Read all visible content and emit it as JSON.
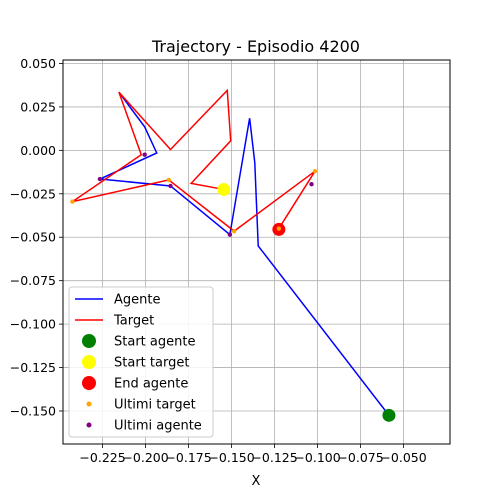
{
  "chart_data": {
    "type": "line",
    "title": "Trajectory - Episodio 4200",
    "xlabel": "X",
    "ylabel": "",
    "xlim": [
      -0.248,
      -0.023
    ],
    "ylim": [
      -0.169,
      0.052
    ],
    "xticks": [
      -0.225,
      -0.2,
      -0.175,
      -0.15,
      -0.125,
      -0.1,
      -0.075,
      -0.05
    ],
    "xtick_labels": [
      "−0.225",
      "−0.200",
      "−0.175",
      "−0.150",
      "−0.125",
      "−0.100",
      "−0.075",
      "−0.050"
    ],
    "yticks": [
      0.05,
      0.025,
      0.0,
      -0.025,
      -0.05,
      -0.075,
      -0.1,
      -0.125,
      -0.15
    ],
    "ytick_labels": [
      "0.050",
      "0.025",
      "0.000",
      "−0.025",
      "−0.050",
      "−0.075",
      "−0.100",
      "−0.125",
      "−0.150"
    ],
    "grid": true,
    "legend_position": "lower-left",
    "series": [
      {
        "name": "Agente",
        "kind": "line",
        "color": "#0000ff",
        "x": [
          -0.0585,
          -0.1345,
          -0.1365,
          -0.1395,
          -0.151,
          -0.1855,
          -0.2265,
          -0.1935,
          -0.2005,
          -0.2155
        ],
        "y": [
          -0.1525,
          -0.055,
          -0.007,
          0.0185,
          -0.0485,
          -0.0205,
          -0.0165,
          -0.0015,
          0.0135,
          0.0335
        ]
      },
      {
        "name": "Target",
        "kind": "line",
        "color": "#ff0000",
        "x": [
          -0.1545,
          -0.1735,
          -0.1505,
          -0.1525,
          -0.1855,
          -0.2155,
          -0.2025,
          -0.2425,
          -0.1865,
          -0.1485,
          -0.1015,
          -0.1225
        ],
        "y": [
          -0.0225,
          -0.019,
          0.0055,
          0.0345,
          0.0005,
          0.0335,
          -0.0025,
          -0.0295,
          -0.017,
          -0.0465,
          -0.012,
          -0.045
        ]
      },
      {
        "name": "Start agente",
        "kind": "marker",
        "color": "#008000",
        "x": [
          -0.0585
        ],
        "y": [
          -0.1525
        ]
      },
      {
        "name": "Start target",
        "kind": "marker",
        "color": "#ffff00",
        "x": [
          -0.1545
        ],
        "y": [
          -0.0225
        ]
      },
      {
        "name": "End agente",
        "kind": "marker",
        "color": "#ff0000",
        "x": [
          -0.1225
        ],
        "y": [
          -0.0455
        ]
      },
      {
        "name": "Ultimi target",
        "kind": "small-marker",
        "color": "#ffa500",
        "x": [
          -0.1015,
          -0.1225,
          -0.2425,
          -0.1865,
          -0.1485
        ],
        "y": [
          -0.012,
          -0.045,
          -0.0295,
          -0.017,
          -0.0465
        ]
      },
      {
        "name": "Ultimi agente",
        "kind": "small-marker",
        "color": "#800080",
        "x": [
          -0.1035,
          -0.151,
          -0.1855,
          -0.2265,
          -0.2005
        ],
        "y": [
          -0.0195,
          -0.0485,
          -0.0205,
          -0.0165,
          -0.0025
        ]
      }
    ]
  }
}
